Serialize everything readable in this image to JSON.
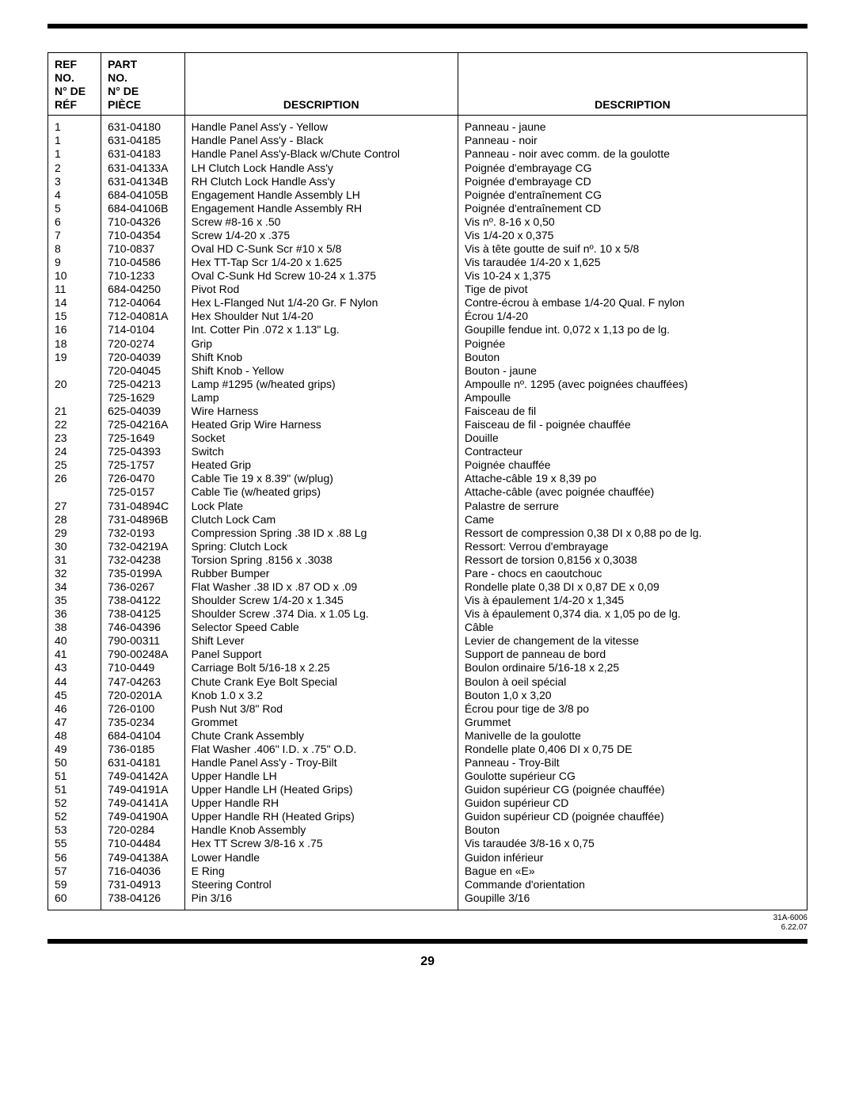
{
  "headers": {
    "ref": "REF\nNO.\nN° DE\nRÉF",
    "part": "PART\nNO.\nN° DE\nPIÈCE",
    "desc_en": "DESCRIPTION",
    "desc_fr": "DESCRIPTION"
  },
  "rows": [
    {
      "ref": "1",
      "part": "631-04180",
      "en": "Handle Panel Ass'y - Yellow",
      "fr": "Panneau - jaune"
    },
    {
      "ref": "1",
      "part": "631-04185",
      "en": "Handle Panel Ass'y - Black",
      "fr": "Panneau - noir"
    },
    {
      "ref": "1",
      "part": "631-04183",
      "en": "Handle Panel Ass'y-Black w/Chute Control",
      "fr": "Panneau - noir avec comm. de la goulotte"
    },
    {
      "ref": "2",
      "part": "631-04133A",
      "en": "LH Clutch Lock Handle Ass'y",
      "fr": "Poignée d'embrayage CG"
    },
    {
      "ref": "3",
      "part": "631-04134B",
      "en": "RH Clutch Lock Handle Ass'y",
      "fr": "Poignée d'embrayage CD"
    },
    {
      "ref": "4",
      "part": "684-04105B",
      "en": "Engagement Handle Assembly LH",
      "fr": "Poignée d'entraînement CG"
    },
    {
      "ref": "5",
      "part": "684-04106B",
      "en": "Engagement Handle Assembly RH",
      "fr": "Poignée d'entraînement CD"
    },
    {
      "ref": "6",
      "part": "710-04326",
      "en": "Screw #8-16 x .50",
      "fr": "Vis nº. 8-16 x 0,50"
    },
    {
      "ref": "7",
      "part": "710-04354",
      "en": "Screw 1/4-20 x .375",
      "fr": "Vis 1/4-20 x 0,375"
    },
    {
      "ref": "8",
      "part": "710-0837",
      "en": "Oval HD C-Sunk Scr #10 x 5/8",
      "fr": "Vis à tête goutte de suif nº. 10 x 5/8"
    },
    {
      "ref": "9",
      "part": "710-04586",
      "en": "Hex TT-Tap Scr 1/4-20 x 1.625",
      "fr": "Vis taraudée 1/4-20 x 1,625"
    },
    {
      "ref": "10",
      "part": "710-1233",
      "en": "Oval C-Sunk Hd Screw 10-24 x 1.375",
      "fr": "Vis 10-24 x 1,375"
    },
    {
      "ref": "11",
      "part": "684-04250",
      "en": "Pivot Rod",
      "fr": "Tige de pivot"
    },
    {
      "ref": "14",
      "part": "712-04064",
      "en": "Hex L-Flanged Nut 1/4-20 Gr. F Nylon",
      "fr": "Contre-écrou à embase 1/4-20 Qual. F nylon"
    },
    {
      "ref": "15",
      "part": "712-04081A",
      "en": "Hex Shoulder Nut 1/4-20",
      "fr": "Écrou 1/4-20"
    },
    {
      "ref": "16",
      "part": "714-0104",
      "en": "Int. Cotter Pin .072 x 1.13\" Lg.",
      "fr": "Goupille fendue int. 0,072 x 1,13 po de lg."
    },
    {
      "ref": "18",
      "part": "720-0274",
      "en": "Grip",
      "fr": "Poignée"
    },
    {
      "ref": "19",
      "part": "720-04039",
      "en": "Shift Knob",
      "fr": "Bouton"
    },
    {
      "ref": "",
      "part": "720-04045",
      "en": "Shift Knob - Yellow",
      "fr": "Bouton - jaune"
    },
    {
      "ref": "20",
      "part": "725-04213",
      "en": "Lamp #1295 (w/heated grips)",
      "fr": "Ampoulle nº. 1295 (avec poignées chauffées)"
    },
    {
      "ref": "",
      "part": "725-1629",
      "en": "Lamp",
      "fr": "Ampoulle"
    },
    {
      "ref": "21",
      "part": "625-04039",
      "en": "Wire Harness",
      "fr": "Faisceau de fil"
    },
    {
      "ref": "22",
      "part": "725-04216A",
      "en": "Heated Grip Wire Harness",
      "fr": "Faisceau de fil - poignée chauffée"
    },
    {
      "ref": "23",
      "part": "725-1649",
      "en": "Socket",
      "fr": "Douille"
    },
    {
      "ref": "24",
      "part": "725-04393",
      "en": "Switch",
      "fr": "Contracteur"
    },
    {
      "ref": "25",
      "part": "725-1757",
      "en": "Heated Grip",
      "fr": "Poignée chauffée"
    },
    {
      "ref": "26",
      "part": "726-0470",
      "en": "Cable Tie 19 x 8.39\" (w/plug)",
      "fr": "Attache-câble 19 x 8,39 po"
    },
    {
      "ref": "",
      "part": "725-0157",
      "en": "Cable Tie (w/heated grips)",
      "fr": "Attache-câble (avec poignée chauffée)"
    },
    {
      "ref": "27",
      "part": "731-04894C",
      "en": "Lock Plate",
      "fr": "Palastre de serrure"
    },
    {
      "ref": "28",
      "part": "731-04896B",
      "en": "Clutch Lock Cam",
      "fr": "Came"
    },
    {
      "ref": "29",
      "part": "732-0193",
      "en": "Compression Spring .38 ID x .88 Lg",
      "fr": "Ressort de compression 0,38 DI x 0,88 po de lg."
    },
    {
      "ref": "30",
      "part": "732-04219A",
      "en": "Spring: Clutch Lock",
      "fr": "Ressort: Verrou d'embrayage"
    },
    {
      "ref": "31",
      "part": "732-04238",
      "en": "Torsion Spring .8156 x .3038",
      "fr": "Ressort de torsion 0,8156 x 0,3038"
    },
    {
      "ref": "32",
      "part": "735-0199A",
      "en": "Rubber Bumper",
      "fr": "Pare - chocs en caoutchouc"
    },
    {
      "ref": "34",
      "part": "736-0267",
      "en": "Flat Washer .38 ID x .87 OD x .09",
      "fr": "Rondelle plate 0,38 DI x 0,87 DE x 0,09"
    },
    {
      "ref": "35",
      "part": "738-04122",
      "en": "Shoulder Screw 1/4-20 x 1.345",
      "fr": "Vis à épaulement 1/4-20 x 1,345"
    },
    {
      "ref": "36",
      "part": "738-04125",
      "en": "Shoulder Screw .374 Dia. x 1.05 Lg.",
      "fr": "Vis à épaulement 0,374 dia. x 1,05 po de lg."
    },
    {
      "ref": "38",
      "part": "746-04396",
      "en": "Selector Speed Cable",
      "fr": "Câble"
    },
    {
      "ref": "40",
      "part": "790-00311",
      "en": "Shift Lever",
      "fr": "Levier de changement de la vitesse"
    },
    {
      "ref": "41",
      "part": "790-00248A",
      "en": "Panel Support",
      "fr": "Support de panneau de bord"
    },
    {
      "ref": "43",
      "part": "710-0449",
      "en": "Carriage Bolt 5/16-18 x 2.25",
      "fr": "Boulon ordinaire 5/16-18 x 2,25"
    },
    {
      "ref": "44",
      "part": "747-04263",
      "en": "Chute Crank Eye Bolt Special",
      "fr": "Boulon à oeil spécial"
    },
    {
      "ref": "45",
      "part": "720-0201A",
      "en": "Knob 1.0 x 3.2",
      "fr": "Bouton 1,0 x 3,20"
    },
    {
      "ref": "46",
      "part": "726-0100",
      "en": "Push Nut 3/8\" Rod",
      "fr": "Écrou pour tige de 3/8 po"
    },
    {
      "ref": "47",
      "part": "735-0234",
      "en": "Grommet",
      "fr": "Grummet"
    },
    {
      "ref": "48",
      "part": "684-04104",
      "en": "Chute Crank Assembly",
      "fr": "Manivelle de la goulotte"
    },
    {
      "ref": "49",
      "part": "736-0185",
      "en": "Flat Washer .406\" I.D. x .75\" O.D.",
      "fr": "Rondelle plate 0,406 DI x 0,75 DE"
    },
    {
      "ref": "50",
      "part": "631-04181",
      "en": "Handle Panel Ass'y - Troy-Bilt",
      "fr": "Panneau - Troy-Bilt"
    },
    {
      "ref": "51",
      "part": "749-04142A",
      "en": "Upper Handle LH",
      "fr": "Goulotte supérieur CG"
    },
    {
      "ref": "51",
      "part": "749-04191A",
      "en": "Upper Handle LH (Heated Grips)",
      "fr": "Guidon supérieur CG (poignée chauffée)"
    },
    {
      "ref": "52",
      "part": "749-04141A",
      "en": "Upper Handle RH",
      "fr": "Guidon supérieur CD"
    },
    {
      "ref": "52",
      "part": "749-04190A",
      "en": "Upper Handle RH (Heated Grips)",
      "fr": "Guidon supérieur CD (poignée chauffée)"
    },
    {
      "ref": "53",
      "part": "720-0284",
      "en": "Handle Knob Assembly",
      "fr": "Bouton"
    },
    {
      "ref": "55",
      "part": "710-04484",
      "en": "Hex TT Screw 3/8-16 x .75",
      "fr": "Vis taraudée 3/8-16 x 0,75"
    },
    {
      "ref": "56",
      "part": "749-04138A",
      "en": "Lower Handle",
      "fr": "Guidon inférieur"
    },
    {
      "ref": "57",
      "part": "716-04036",
      "en": "E Ring",
      "fr": "Bague en «E»"
    },
    {
      "ref": "59",
      "part": "731-04913",
      "en": "Steering Control",
      "fr": "Commande d'orientation"
    },
    {
      "ref": "60",
      "part": "738-04126",
      "en": "Pin 3/16",
      "fr": "Goupille 3/16"
    }
  ],
  "meta": {
    "doc_no": "31A-6006",
    "date": "6.22.07",
    "page_number": "29"
  }
}
